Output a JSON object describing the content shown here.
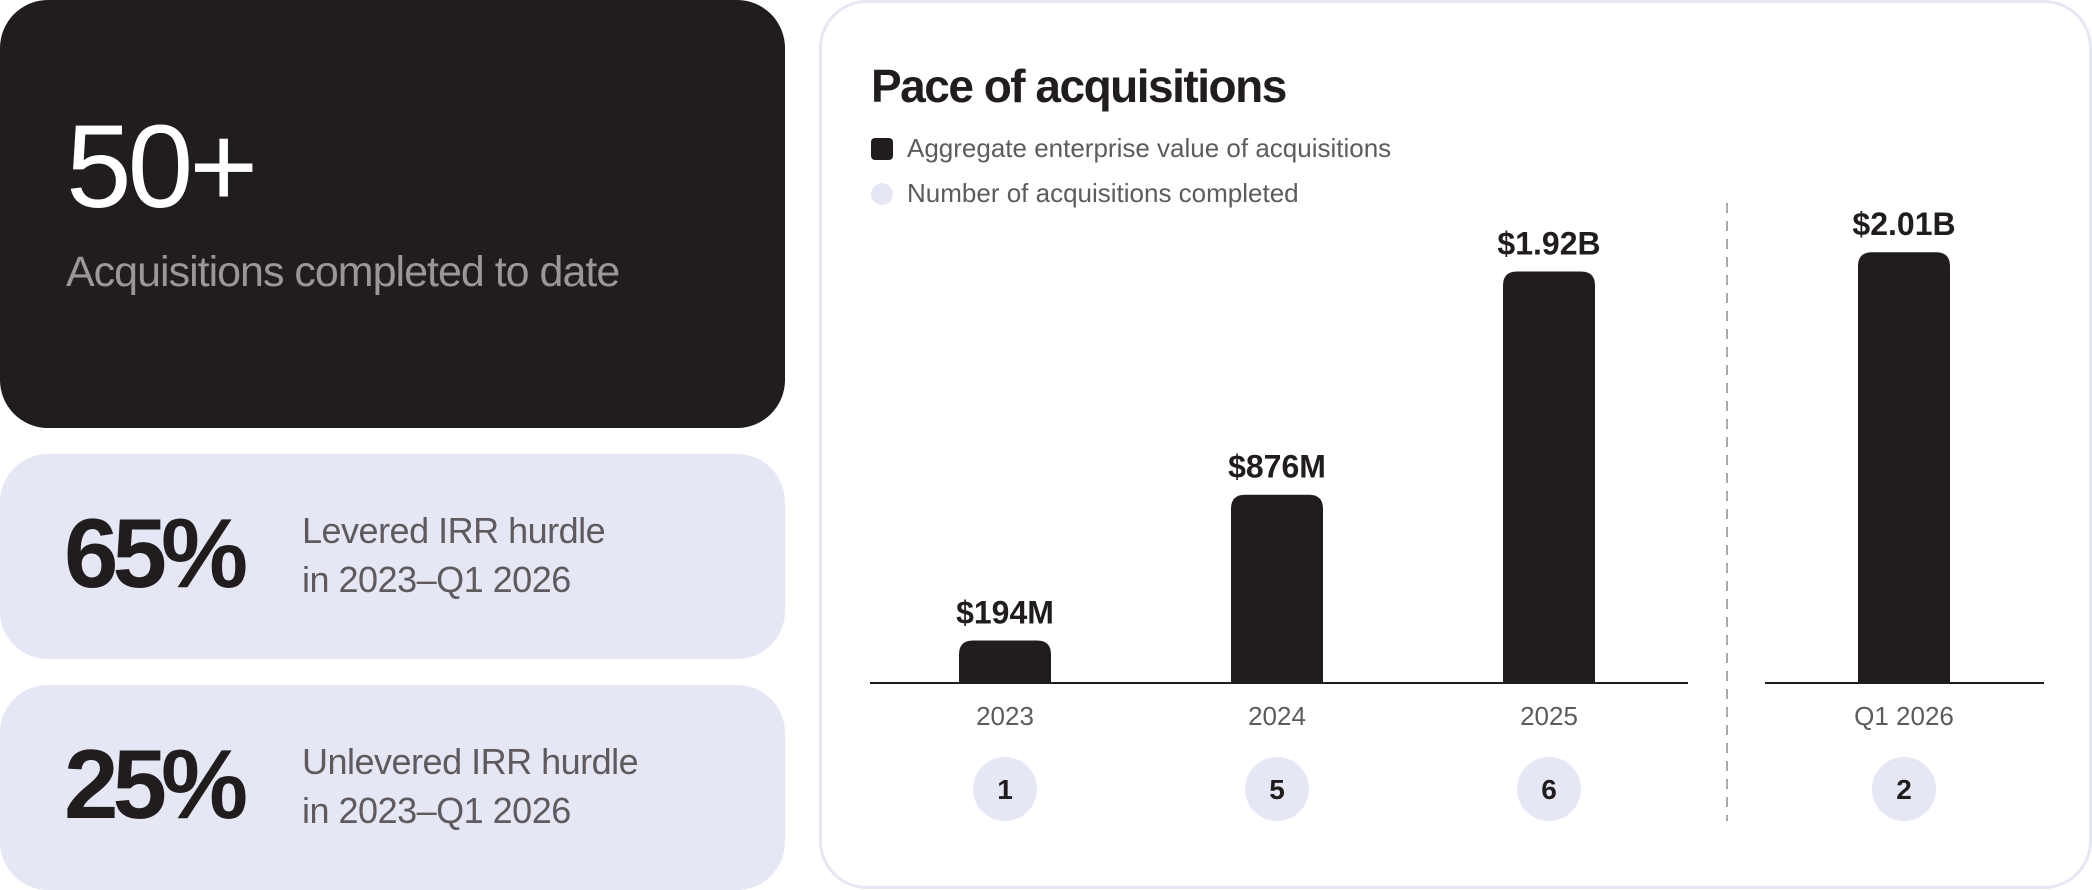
{
  "stats": {
    "acquisitions": {
      "value": "50+",
      "label": "Acquisitions completed to date"
    },
    "levered": {
      "value": "65%",
      "line1": "Levered IRR hurdle",
      "line2": "in 2023–Q1 2026"
    },
    "unlevered": {
      "value": "25%",
      "line1": "Unlevered IRR hurdle",
      "line2": "in 2023–Q1 2026"
    }
  },
  "colors": {
    "dark": "#211d1e",
    "light": "#e6e7f4",
    "muted": "#5e5a5d",
    "divider": "#aaaaaa"
  },
  "chart_data": {
    "type": "bar",
    "title": "Pace of acquisitions",
    "legend": [
      "Aggregate enterprise value of acquisitions",
      "Number of acquisitions completed"
    ],
    "categories": [
      "2023",
      "2024",
      "2025",
      "Q1 2026"
    ],
    "series": [
      {
        "name": "Aggregate enterprise value of acquisitions",
        "values": [
          194,
          876,
          1920,
          2010
        ],
        "unit": "USD millions",
        "labels": [
          "$194M",
          "$876M",
          "$1.92B",
          "$2.01B"
        ]
      },
      {
        "name": "Number of acquisitions completed",
        "values": [
          1,
          5,
          6,
          2
        ]
      }
    ],
    "ylim": [
      0,
      2100
    ],
    "grid": false,
    "legend_position": "top-left"
  }
}
